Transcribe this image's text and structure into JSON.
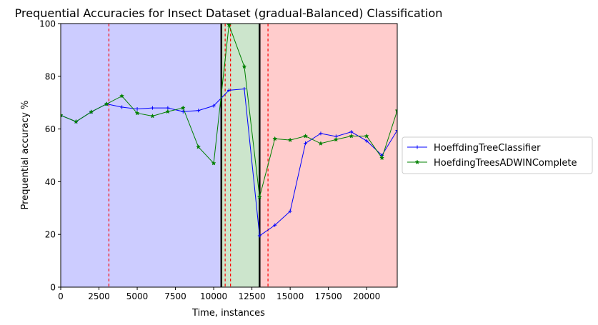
{
  "chart_data": {
    "type": "line",
    "title": "Prequential Accuracies for Insect Dataset (gradual-Balanced) Classification",
    "xlabel": "Time, instances",
    "ylabel": "Prequential accuracy %",
    "xlim": [
      0,
      22000
    ],
    "ylim": [
      0,
      100
    ],
    "xticks": [
      0,
      2500,
      5000,
      7500,
      10000,
      12500,
      15000,
      17500,
      20000
    ],
    "yticks": [
      0,
      20,
      40,
      60,
      80,
      100
    ],
    "grid": false,
    "legend_position": "right-outside",
    "regions": [
      {
        "from": 0,
        "to": 10500,
        "color": "#ccccff"
      },
      {
        "from": 10500,
        "to": 13000,
        "color": "#cce5cc"
      },
      {
        "from": 13000,
        "to": 22000,
        "color": "#ffcccc"
      }
    ],
    "black_lines": [
      10500,
      13000
    ],
    "red_dashed_lines": [
      3150,
      10750,
      11100,
      13550
    ],
    "series": [
      {
        "name": "HoeffdingTreeClassifier",
        "color": "#0000ff",
        "marker": "plus",
        "x": [
          0,
          1000,
          2000,
          3000,
          4000,
          5000,
          6000,
          7000,
          8000,
          9000,
          10000,
          11000,
          12000,
          13000,
          14000,
          15000,
          16000,
          17000,
          18000,
          19000,
          20000,
          21000,
          22000
        ],
        "values": [
          65.2,
          62.8,
          66.5,
          69.5,
          68.3,
          67.6,
          68.0,
          68.0,
          66.6,
          67.0,
          68.8,
          74.7,
          75.2,
          19.5,
          23.5,
          28.8,
          54.6,
          58.3,
          57.2,
          58.9,
          55.5,
          50.0,
          59.5
        ]
      },
      {
        "name": "HoefdingTreesADWINComplete",
        "color": "#008000",
        "marker": "star",
        "x": [
          0,
          1000,
          2000,
          3000,
          4000,
          5000,
          6000,
          7000,
          8000,
          9000,
          10000,
          11000,
          12000,
          13000,
          14000,
          15000,
          16000,
          17000,
          18000,
          19000,
          20000,
          21000,
          22000
        ],
        "values": [
          65.2,
          62.8,
          66.5,
          69.5,
          72.5,
          66.0,
          64.9,
          66.6,
          68.0,
          53.2,
          47.0,
          99.5,
          83.7,
          34.2,
          56.3,
          55.8,
          57.3,
          54.5,
          56.0,
          57.3,
          57.3,
          49.0,
          67.0
        ]
      }
    ]
  }
}
